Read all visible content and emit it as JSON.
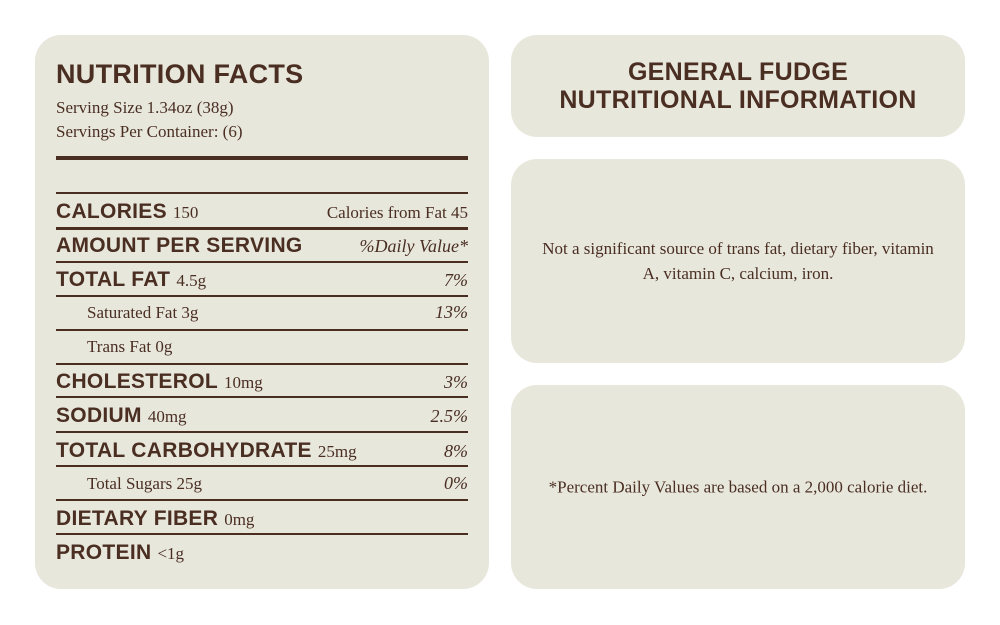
{
  "facts": {
    "title": "NUTRITION FACTS",
    "serving_size": "Serving Size 1.34oz (38g)",
    "servings_per_container": "Servings Per Container: (6)",
    "rows": [
      {
        "name": "CALORIES",
        "amount": "150",
        "right": "Calories from Fat 45",
        "style": "main"
      },
      {
        "name": "AMOUNT PER SERVING",
        "amount": "",
        "right": "%Daily Value*",
        "style": "main"
      },
      {
        "name": "TOTAL FAT",
        "amount": "4.5g",
        "right": "7%",
        "style": "main"
      },
      {
        "name": "Saturated Fat 3g",
        "amount": "",
        "right": "13%",
        "style": "sub"
      },
      {
        "name": "Trans Fat 0g",
        "amount": "",
        "right": "",
        "style": "sub"
      },
      {
        "name": "CHOLESTEROL",
        "amount": "10mg",
        "right": "3%",
        "style": "main"
      },
      {
        "name": "SODIUM",
        "amount": "40mg",
        "right": "2.5%",
        "style": "main"
      },
      {
        "name": "TOTAL CARBOHYDRATE",
        "amount": "25mg",
        "right": "8%",
        "style": "main"
      },
      {
        "name": "Total Sugars 25g",
        "amount": "",
        "right": "0%",
        "style": "sub"
      },
      {
        "name": "DIETARY FIBER",
        "amount": "0mg",
        "right": "",
        "style": "main"
      },
      {
        "name": "PROTEIN",
        "amount": "<1g",
        "right": "",
        "style": "main"
      }
    ]
  },
  "header": {
    "line1": "GENERAL FUDGE",
    "line2": "NUTRITIONAL INFORMATION"
  },
  "notes": {
    "not_significant": "Not a significant source of trans fat, dietary fiber, vitamin A, vitamin C, calcium, iron.",
    "daily_values": "*Percent Daily Values are based on a 2,000 calorie diet."
  },
  "colors": {
    "card": "#e8e7dc",
    "text": "#4a2e22"
  }
}
